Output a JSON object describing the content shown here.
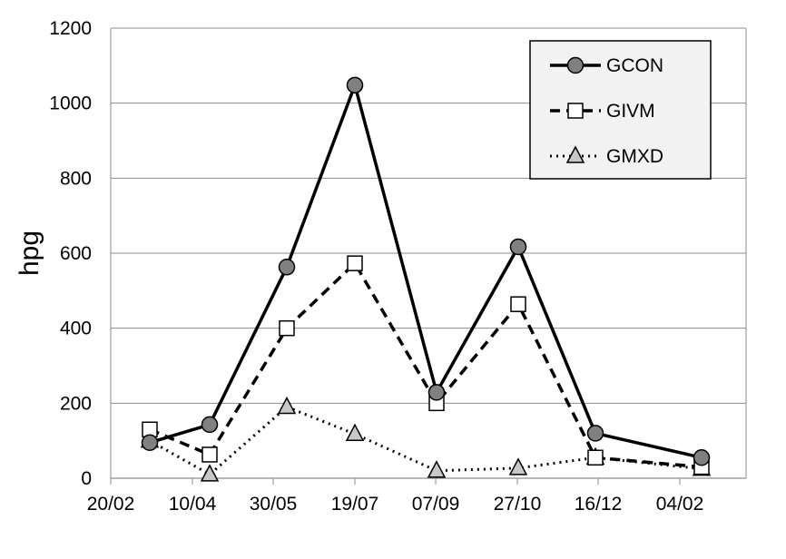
{
  "chart_data": {
    "type": "line",
    "title": "",
    "xlabel": "",
    "ylabel": "hpg",
    "ylim": [
      0,
      1200
    ],
    "yticks": [
      0,
      200,
      400,
      600,
      800,
      1000,
      1200
    ],
    "xtick_labels": [
      "20/02",
      "10/04",
      "30/05",
      "19/07",
      "07/09",
      "27/10",
      "16/12",
      "04/02"
    ],
    "grid": "horizontal",
    "legend_position": "top-right",
    "categories": [
      "08/03",
      "14/04",
      "14/06",
      "19/07",
      "07/09",
      "27/10",
      "16/12",
      "11/02"
    ],
    "series": [
      {
        "name": "GCON",
        "values": [
          95,
          143,
          563,
          1048,
          229,
          617,
          120,
          55
        ],
        "color": "#000000",
        "line": "solid",
        "marker": "circle",
        "marker_fill": "#808080"
      },
      {
        "name": "GIVM",
        "values": [
          130,
          63,
          400,
          573,
          200,
          464,
          55,
          30
        ],
        "color": "#000000",
        "line": "dashed",
        "marker": "square",
        "marker_fill": "#ffffff"
      },
      {
        "name": "GMXD",
        "values": [
          100,
          10,
          190,
          118,
          20,
          27,
          55,
          25
        ],
        "color": "#000000",
        "line": "dotted",
        "marker": "triangle",
        "marker_fill": "#c8c8c8"
      }
    ]
  }
}
